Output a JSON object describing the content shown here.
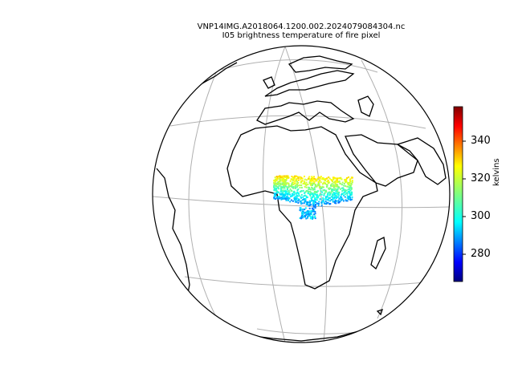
{
  "title": {
    "line1": "VNP14IMG.A2018064.1200.002.2024079084304.nc",
    "line2": "I05 brightness temperature of fire pixel"
  },
  "colorbar": {
    "label": "kelvins",
    "ticks": [
      280,
      300,
      320,
      340
    ],
    "range": [
      265,
      360
    ],
    "colormap": "jet"
  },
  "map": {
    "projection": "orthographic",
    "gridlines": true,
    "coastlines": true
  },
  "chart_data": {
    "type": "scatter",
    "variable": "I05 brightness temperature of fire pixel",
    "units": "kelvins",
    "region": "Sub-Saharan Africa",
    "value_range": [
      265,
      360
    ],
    "dominant_band": [
      295,
      330
    ]
  },
  "colors": {
    "land_outline": "#000000",
    "gridline": "#b0b0b0",
    "background": "#ffffff"
  }
}
